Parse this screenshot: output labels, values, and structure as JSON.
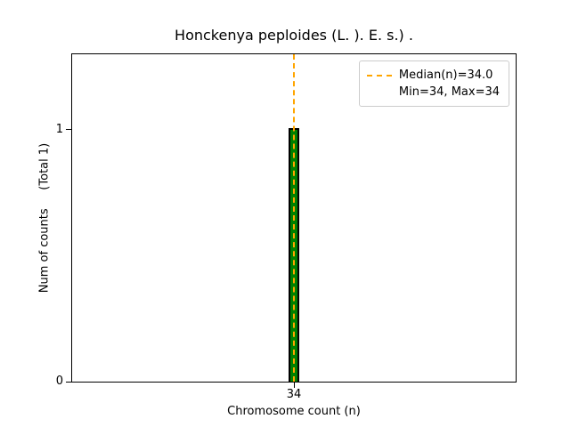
{
  "chart_data": {
    "type": "bar",
    "title": "Honckenya peploides (L. ). E. s.) .",
    "xlabel": "Chromosome count (n)",
    "ylabel": "Num of counts     (Total 1)",
    "categories": [
      34
    ],
    "values": [
      1
    ],
    "ylim": [
      0,
      1.3
    ],
    "yticks": [
      0,
      1
    ],
    "xticks": [
      "34"
    ],
    "grid": false,
    "bar_color": "#008000",
    "bar_edge_color": "#000000",
    "median_line": {
      "x": 34,
      "color": "#FFA500",
      "style": "dashed"
    },
    "legend": {
      "position": "upper right",
      "entries": [
        {
          "label": "Median(n)=34.0",
          "line_color": "#FFA500",
          "line_style": "dashed"
        },
        {
          "label": "Min=34, Max=34",
          "line_color": "",
          "line_style": ""
        }
      ]
    }
  }
}
